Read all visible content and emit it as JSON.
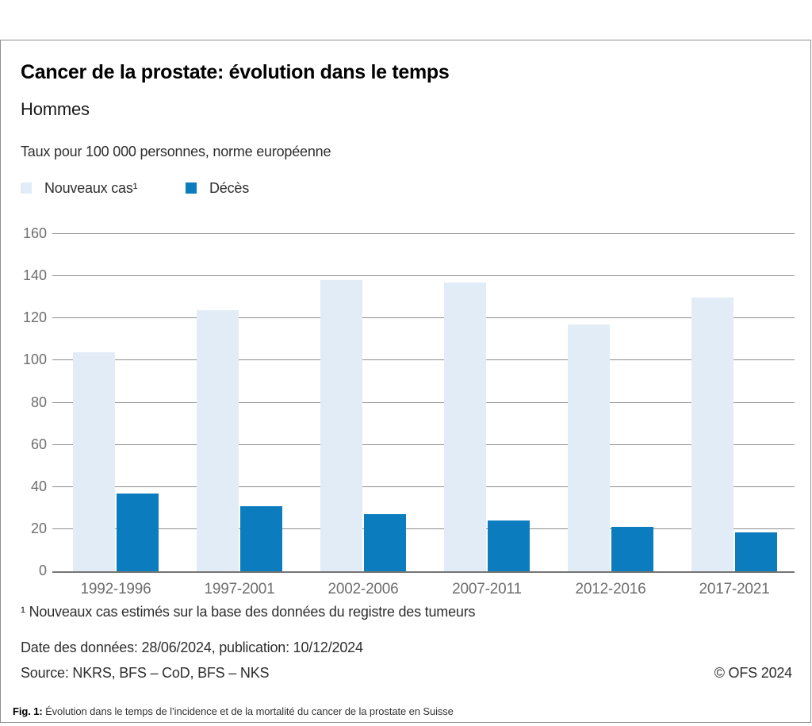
{
  "header": {
    "title": "Cancer de la prostate: évolution dans le temps",
    "subtitle": "Hommes",
    "unit_label": "Taux pour 100 000 personnes, norme européenne"
  },
  "legend": [
    {
      "label": "Nouveaux cas¹",
      "color": "#e2ecf7"
    },
    {
      "label": "Décès",
      "color": "#0b7cbe"
    }
  ],
  "chart_data": {
    "type": "bar",
    "title": "Cancer de la prostate: évolution dans le temps — Hommes",
    "ylabel": "Taux pour 100 000 personnes, norme européenne",
    "categories": [
      "1992-1996",
      "1997-2001",
      "2002-2006",
      "2007-2011",
      "2012-2016",
      "2017-2021"
    ],
    "series": [
      {
        "name": "Nouveaux cas¹",
        "color": "#e2ecf7",
        "values": [
          104,
          124,
          138,
          137,
          117,
          130
        ]
      },
      {
        "name": "Décès",
        "color": "#0b7cbe",
        "values": [
          37,
          31,
          27,
          24,
          21,
          18.5
        ]
      }
    ],
    "ylim": [
      0,
      160
    ],
    "ytick_step": 20,
    "yticks": [
      0,
      20,
      40,
      60,
      80,
      100,
      120,
      140,
      160
    ],
    "grid": true,
    "legend_position": "top-left"
  },
  "footnote": "¹ Nouveaux cas estimés sur la base des données du registre des tumeurs",
  "footer": {
    "date_line": "Date des données: 28/06/2024, publication: 10/12/2024",
    "source_line": "Source: NKRS, BFS – CoD, BFS – NKS",
    "copyright": "© OFS 2024"
  },
  "caption": {
    "label": "Fig. 1:",
    "text": " Évolution dans le temps de l’incidence et de la mortalité du cancer de la prostate en Suisse"
  },
  "colors": {
    "new_cases_bar": "#e2ecf7",
    "deaths_bar": "#0b7cbe",
    "gridline": "#8e8e8e",
    "axis_line": "#757575",
    "tick_label": "#6e6e6e",
    "panel_border": "#8f8f8f"
  }
}
